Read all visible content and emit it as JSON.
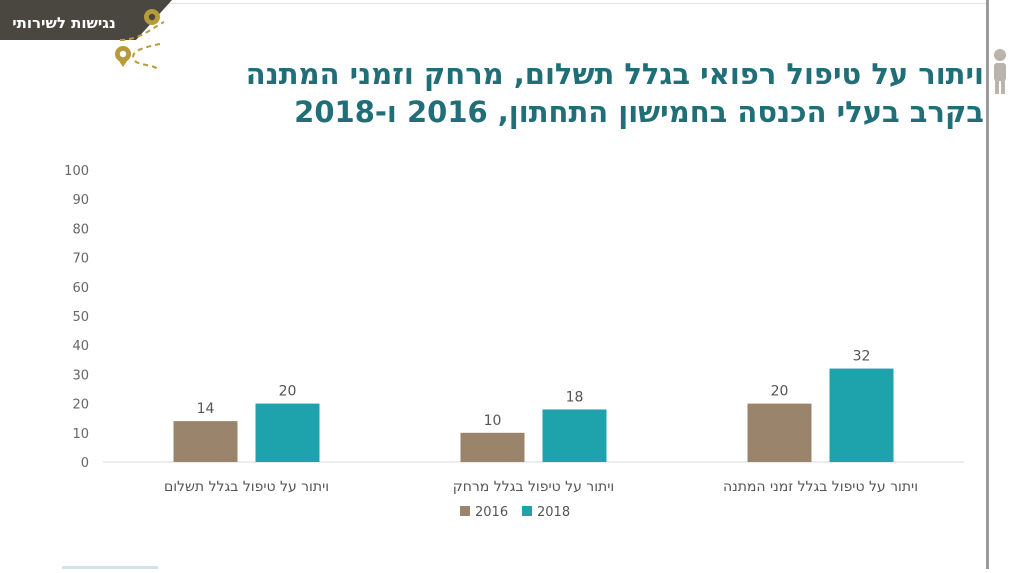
{
  "banner": {
    "text": "נגישות לשירותי"
  },
  "title": {
    "line1": "ויתור על טיפול רפואי בגלל תשלום, מרחק וזמני המתנה",
    "line2": "בקרב בעלי הכנסה בחמישון התחתון, 2016 ו-2018"
  },
  "colors": {
    "series_2016": "#9a846b",
    "series_2018": "#1ea3ad",
    "title": "#1f6e78",
    "banner": "#4a4741",
    "accent": "#b79b3a"
  },
  "chart_data": {
    "type": "bar",
    "categories": [
      "ויתור על טיפול בגלל זמני המתנה",
      "ויתור על טיפול בגלל מרחק",
      "ויתור על טיפול בגלל תשלום"
    ],
    "series": [
      {
        "name": "2016",
        "values": [
          20,
          10,
          14
        ]
      },
      {
        "name": "2018",
        "values": [
          32,
          18,
          20
        ]
      }
    ],
    "yticks": [
      "0",
      "10",
      "20",
      "30",
      "40",
      "50",
      "60",
      "70",
      "80",
      "90",
      "100"
    ],
    "ylim": [
      0,
      100
    ],
    "grid": false,
    "legend": "bottom-center"
  }
}
